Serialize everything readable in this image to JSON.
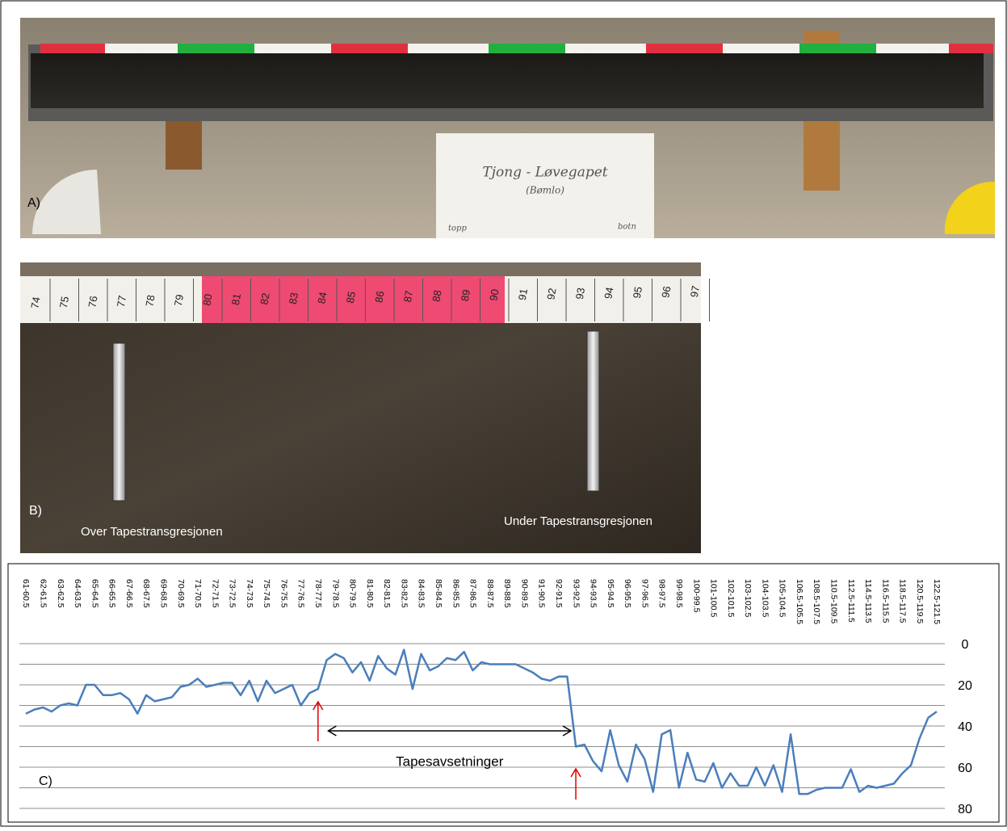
{
  "panel_a": {
    "label": "A)",
    "note": [
      "Tjong - Løvegapet",
      "(Bømlo)"
    ],
    "left_note": "topp",
    "right_note": "botn"
  },
  "panel_b": {
    "label": "B)",
    "left_caption": "Over Tapestransgresjonen",
    "right_caption": "Under Tapestransgresjonen",
    "tape_numbers": [
      "74",
      "75",
      "76",
      "77",
      "78",
      "79",
      "80",
      "81",
      "82",
      "83",
      "84",
      "85",
      "86",
      "87",
      "88",
      "89",
      "90",
      "91",
      "92",
      "93",
      "94",
      "95",
      "96",
      "97"
    ]
  },
  "chart_data": {
    "type": "line",
    "panel_label": "C)",
    "annotation": "Tapesavsetninger",
    "categories": [
      "61-60.5",
      null,
      "62-61.5",
      null,
      "63-62.5",
      null,
      "64-63.5",
      null,
      "65-64.5",
      null,
      "66-65.5",
      null,
      "67-66.5",
      null,
      "68-67.5",
      null,
      "69-68.5",
      null,
      "70-69.5",
      null,
      "71-70.5",
      null,
      "72-71.5",
      null,
      "73-72.5",
      null,
      "74-73.5",
      null,
      "75-74.5",
      null,
      "76-75.5",
      null,
      "77-76.5",
      null,
      "78-77.5",
      null,
      "79-78.5",
      null,
      "80-79.5",
      null,
      "81-80.5",
      null,
      "82-81.5",
      null,
      "83-82.5",
      null,
      "84-83.5",
      null,
      "85-84.5",
      null,
      "86-85.5",
      null,
      "87-86.5",
      null,
      "88-87.5",
      null,
      "89-88.5",
      null,
      "90-89.5",
      null,
      "91-90.5",
      null,
      "92-91.5",
      null,
      "93-92.5",
      null,
      "94-93.5",
      null,
      "95-94.5",
      null,
      "96-95.5",
      null,
      "97-96.5",
      null,
      "98-97.5",
      null,
      "99-98.5",
      null,
      "100-99.5",
      null,
      "101-100.5",
      null,
      "102-101.5",
      null,
      "103-102.5",
      null,
      "104-103.5",
      null,
      "105-104.5",
      null,
      "106.5-105.5",
      null,
      "108.5-107.5",
      null,
      "110.5-109.5",
      null,
      "112.5-111.5",
      null,
      "114.5-113.5",
      null,
      "116.5-115.5",
      null,
      "118.5-117.5",
      null,
      "120.5-119.5",
      null,
      "122.5-121.5"
    ],
    "values": [
      34,
      32,
      31,
      33,
      30,
      29,
      30,
      20,
      20,
      25,
      25,
      24,
      27,
      34,
      25,
      28,
      27,
      26,
      21,
      20,
      17,
      21,
      20,
      19,
      19,
      25,
      18,
      28,
      18,
      24,
      22,
      20,
      30,
      24,
      22,
      8,
      5,
      7,
      14,
      9,
      18,
      6,
      12,
      15,
      3,
      22,
      5,
      13,
      11,
      7,
      8,
      4,
      13,
      9,
      10,
      10,
      10,
      10,
      12,
      14,
      17,
      18,
      16,
      16,
      50,
      49,
      57,
      62,
      42,
      59,
      67,
      49,
      56,
      72,
      44,
      42,
      70,
      53,
      66,
      67,
      58,
      70,
      63,
      69,
      69,
      60,
      69,
      59,
      72,
      44,
      73,
      73,
      71,
      70,
      70,
      70,
      61,
      72,
      69,
      70,
      69,
      68,
      63,
      59,
      46,
      36,
      33
    ],
    "color": "#4a7ebb",
    "ylim": [
      0,
      80
    ],
    "y_inverted": true,
    "yticks": [
      0,
      20,
      40,
      60,
      80
    ],
    "minor_gridlines": [
      10,
      30,
      50,
      70
    ],
    "grid": true
  }
}
